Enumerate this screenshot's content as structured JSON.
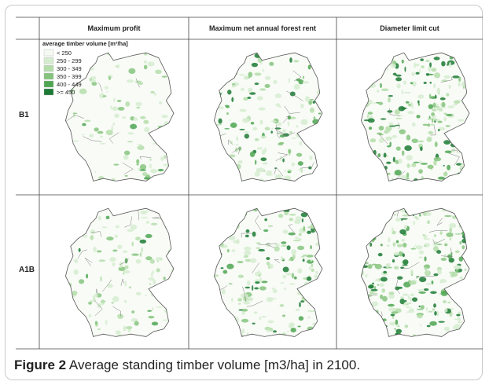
{
  "table": {
    "columns": [
      "Maximum profit",
      "Maximum net annual forest rent",
      "Diameter limit cut"
    ],
    "rows": [
      "B1",
      "A1B"
    ]
  },
  "legend": {
    "title": "average timber volume [m³/ha]",
    "items": [
      "< 250",
      "250 - 299",
      "300 - 349",
      "350 - 399",
      "400 - 449",
      ">= 450"
    ],
    "colors": [
      "#f4f9f1",
      "#d6ecd0",
      "#b5ddab",
      "#86c47e",
      "#4fa652",
      "#1c7a34"
    ]
  },
  "caption": {
    "label": "Figure 2",
    "text": "Average standing timber volume [m3/ha] in 2100."
  }
}
